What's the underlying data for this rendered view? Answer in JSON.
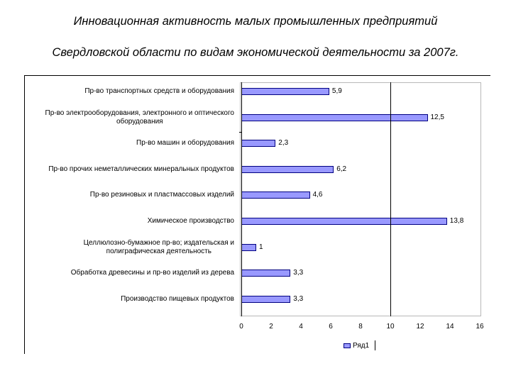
{
  "header": {
    "title_line1": "Инновационная активность малых промышленных предприятий",
    "title_line2": "Свердловской области по видам экономической деятельности за 2007г."
  },
  "colors": {
    "bar_fill": "#9999ff",
    "bar_border": "#000080"
  },
  "chart_data": {
    "type": "bar",
    "orientation": "horizontal",
    "categories": [
      "Пр-во транспортных средств и оборудования",
      "Пр-во электрооборудования, электронного и оптического оборудования",
      "Пр-во машин и оборудования",
      "Пр-во прочих неметаллических минеральных продуктов",
      "Пр-во резиновых и пластмассовых изделий",
      "Химическое производство",
      "Целлюлозно-бумажное пр-во; издательская и полиграфическая деятельность",
      "Обработка древесины и пр-во изделий из дерева",
      "Производство пищевых продуктов"
    ],
    "category_lines": [
      [
        "Пр-во транспортных средств и оборудования"
      ],
      [
        "Пр-во электрооборудования, электронного и оптического",
        "оборудования"
      ],
      [
        "Пр-во машин и оборудования"
      ],
      [
        "Пр-во прочих неметаллических минеральных продуктов"
      ],
      [
        "Пр-во резиновых и пластмассовых изделий"
      ],
      [
        "Химическое производство"
      ],
      [
        "Целлюлозно-бумажное пр-во; издательская и",
        "полиграфическая деятельность"
      ],
      [
        "Обработка древесины и пр-во изделий из дерева"
      ],
      [
        "Производство пищевых продуктов"
      ]
    ],
    "series": [
      {
        "name": "Ряд1",
        "values": [
          5.9,
          12.5,
          2.3,
          6.2,
          4.6,
          13.8,
          1,
          3.3,
          3.3
        ]
      }
    ],
    "value_labels": [
      "5,9",
      "12,5",
      "2,3",
      "6,2",
      "4,6",
      "13,8",
      "1",
      "3,3",
      "3,3"
    ],
    "x_ticks": [
      "0",
      "2",
      "4",
      "6",
      "8",
      "10",
      "12",
      "14",
      "16"
    ],
    "xlim": [
      0,
      16
    ],
    "reference_line_x": 10,
    "grid": false,
    "legend_position": "bottom-right"
  }
}
